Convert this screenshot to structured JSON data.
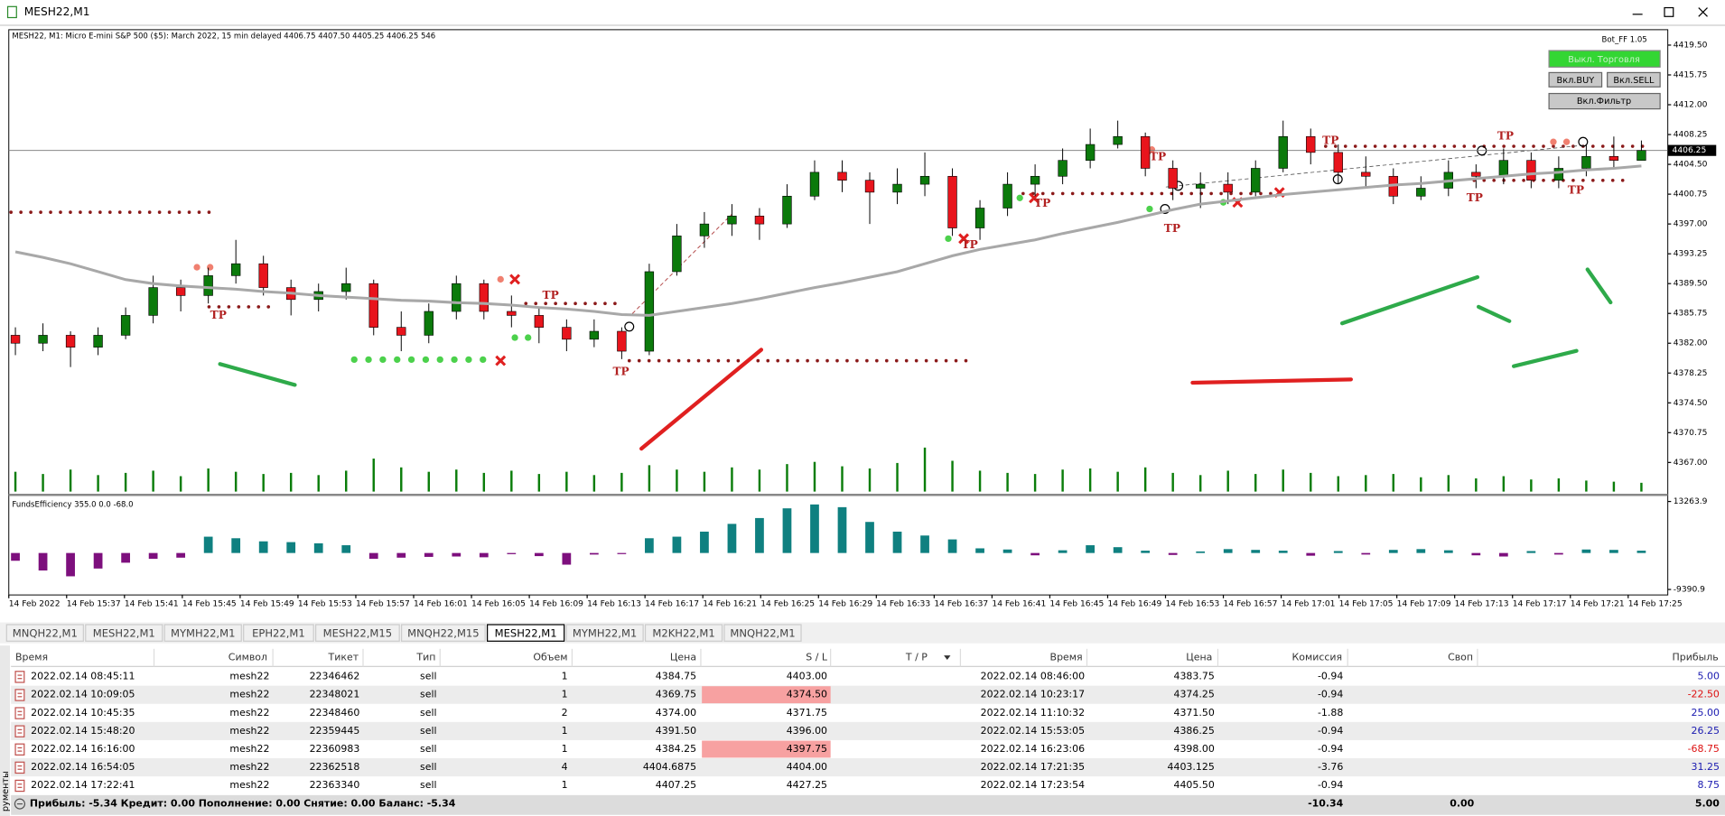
{
  "window": {
    "title": "MESH22,M1"
  },
  "chart_data": {
    "type": "candlestick",
    "header": "MESH22, M1:  Micro E-mini S&P 500 ($5): March 2022, 15 min delayed  4406.75 4407.50 4405.25 4406.25  546",
    "bot_label": "Bot_FF 1.05",
    "buttons": [
      "Выкл. Торговля",
      "Вкл.BUY",
      "Вкл.SELL",
      "Вкл.Фильтр"
    ],
    "ylim": [
      4363.2,
      4421.3
    ],
    "yticks": [
      {
        "value": 4419.5,
        "label": "4419.50"
      },
      {
        "value": 4415.75,
        "label": "4415.75"
      },
      {
        "value": 4412,
        "label": "4412.00"
      },
      {
        "value": 4408.25,
        "label": "4408.25"
      },
      {
        "value": 4404.5,
        "label": "4404.50"
      },
      {
        "value": 4400.75,
        "label": "4400.75"
      },
      {
        "value": 4397,
        "label": "4397.00"
      },
      {
        "value": 4393.25,
        "label": "4393.25"
      },
      {
        "value": 4389.5,
        "label": "4389.50"
      },
      {
        "value": 4385.75,
        "label": "4385.75"
      },
      {
        "value": 4382,
        "label": "4382.00"
      },
      {
        "value": 4378.25,
        "label": "4378.25"
      },
      {
        "value": 4374.5,
        "label": "4374.50"
      },
      {
        "value": 4370.75,
        "label": "4370.75"
      },
      {
        "value": 4367,
        "label": "4367.00"
      }
    ],
    "current_price": {
      "value": 4406.25,
      "label": "4406.25"
    },
    "bull_color": "#0b7a0b",
    "bear_color": "#e8141c",
    "open": [
      4383,
      4382,
      4383,
      4381.5,
      4383,
      4385.5,
      4389,
      4388,
      4390.5,
      4392,
      4389,
      4387.5,
      4388.5,
      4389.5,
      4384,
      4383,
      4386,
      4389.5,
      4386,
      4385.5,
      4384,
      4382.5,
      4383.5,
      4381,
      4391,
      4395.5,
      4397,
      4398,
      4397,
      4400.5,
      4403.5,
      4402.5,
      4401,
      4402,
      4403,
      4396.5,
      4399,
      4402,
      4403,
      4405,
      4407,
      4408,
      4404,
      4401.5,
      4402,
      4401,
      4404,
      4408,
      4406,
      4403.5,
      4403,
      4400.5,
      4401.5,
      4403.5,
      4403,
      4405,
      4402.5,
      4404,
      4405.5,
      4405
    ],
    "high": [
      4384,
      4384.5,
      4383.5,
      4384,
      4386.5,
      4390.5,
      4390,
      4391.5,
      4395,
      4393,
      4390,
      4389.5,
      4391.5,
      4390,
      4386,
      4387,
      4390.5,
      4390,
      4388,
      4386.5,
      4385,
      4385,
      4384,
      4392,
      4397,
      4398.5,
      4399.5,
      4399,
      4402,
      4405,
      4405,
      4403.5,
      4404,
      4406,
      4404,
      4400,
      4403.5,
      4404.5,
      4406.5,
      4409,
      4410,
      4408.5,
      4405,
      4403.5,
      4403.5,
      4405,
      4410,
      4409,
      4407,
      4405.5,
      4404,
      4403,
      4405,
      4404.5,
      4406.5,
      4406,
      4405.5,
      4407,
      4408,
      4407.5
    ],
    "low": [
      4380.5,
      4381,
      4379,
      4380.5,
      4382.5,
      4384.5,
      4386,
      4387,
      4389.5,
      4388,
      4385.5,
      4386,
      4387.5,
      4383,
      4381,
      4382,
      4385,
      4385,
      4384,
      4382,
      4381,
      4381.5,
      4380,
      4380.5,
      4390.5,
      4394,
      4395.5,
      4395,
      4396.5,
      4400,
      4401,
      4397,
      4399.5,
      4400.5,
      4395.5,
      4395,
      4398,
      4400.5,
      4402,
      4404,
      4406.5,
      4403,
      4400,
      4399,
      4399.5,
      4400.5,
      4403.5,
      4404.5,
      4402,
      4401.5,
      4399.5,
      4400,
      4400.5,
      4401.5,
      4402,
      4401.5,
      4401.5,
      4403,
      4404,
      4405
    ],
    "close": [
      4382,
      4383,
      4381.5,
      4383,
      4385.5,
      4389,
      4388,
      4390.5,
      4392,
      4389,
      4387.5,
      4388.5,
      4389.5,
      4384,
      4383,
      4386,
      4389.5,
      4386,
      4385.5,
      4384,
      4382.5,
      4383.5,
      4381,
      4391,
      4395.5,
      4397,
      4398,
      4397,
      4400.5,
      4403.5,
      4402.5,
      4401,
      4402,
      4403,
      4396.5,
      4399,
      4402,
      4403,
      4405,
      4407,
      4408,
      4404,
      4401.5,
      4402,
      4401,
      4404,
      4408,
      4406,
      4403.5,
      4403,
      4400.5,
      4401.5,
      4403.5,
      4403,
      4405,
      4402.5,
      4404,
      4405.5,
      4405,
      4406.25
    ],
    "volume": [
      18,
      16,
      20,
      15,
      17,
      19,
      14,
      21,
      18,
      16,
      17,
      15,
      19,
      30,
      22,
      18,
      20,
      17,
      19,
      16,
      18,
      15,
      17,
      24,
      20,
      18,
      22,
      20,
      25,
      27,
      23,
      21,
      26,
      40,
      28,
      19,
      17,
      16,
      20,
      21,
      18,
      22,
      17,
      15,
      19,
      16,
      20,
      17,
      14,
      15,
      16,
      13,
      15,
      12,
      14,
      11,
      12,
      10,
      9,
      8
    ],
    "moving_average": {
      "color": "#a8a8a8",
      "values": [
        4393.5,
        4392.8,
        4392,
        4391,
        4390,
        4389.5,
        4389.2,
        4389,
        4388.8,
        4388.5,
        4388.3,
        4388,
        4387.8,
        4387.6,
        4387.4,
        4387.3,
        4387.1,
        4387,
        4386.8,
        4386.5,
        4386.3,
        4386,
        4385.6,
        4385.5,
        4386,
        4386.5,
        4387,
        4387.6,
        4388.3,
        4389,
        4389.6,
        4390.3,
        4391,
        4392,
        4393,
        4393.8,
        4394.4,
        4395,
        4395.8,
        4396.5,
        4397.2,
        4398,
        4398.8,
        4399.5,
        4399.9,
        4400.3,
        4400.7,
        4401,
        4401.3,
        4401.6,
        4401.9,
        4402.1,
        4402.4,
        4402.7,
        4403,
        4403.3,
        4403.5,
        4403.8,
        4404,
        4404.3
      ]
    },
    "x_labels": [
      "14 Feb 2022",
      "14 Feb 15:37",
      "14 Feb 15:41",
      "14 Feb 15:45",
      "14 Feb 15:49",
      "14 Feb 15:53",
      "14 Feb 15:57",
      "14 Feb 16:01",
      "14 Feb 16:05",
      "14 Feb 16:09",
      "14 Feb 16:13",
      "14 Feb 16:17",
      "14 Feb 16:21",
      "14 Feb 16:25",
      "14 Feb 16:29",
      "14 Feb 16:33",
      "14 Feb 16:37",
      "14 Feb 16:41",
      "14 Feb 16:45",
      "14 Feb 16:49",
      "14 Feb 16:53",
      "14 Feb 16:57",
      "14 Feb 17:01",
      "14 Feb 17:05",
      "14 Feb 17:09",
      "14 Feb 17:13",
      "14 Feb 17:17",
      "14 Feb 17:21",
      "14 Feb 17:25"
    ],
    "tp_marker": "TP",
    "indicator": {
      "type": "bar",
      "label": "FundsEfficiency 355.0 0.0 -68.0",
      "ylim": [
        -10520,
        14400
      ],
      "yticks": [
        13263.9,
        -9390.9
      ],
      "positive_color": "#0f8080",
      "negative_color": "#7d0f7d",
      "values": [
        -2000,
        -4500,
        -6000,
        -4000,
        -2500,
        -1500,
        -1200,
        4200,
        3800,
        3000,
        2800,
        2500,
        2000,
        -1500,
        -1200,
        -1000,
        -900,
        -1100,
        -300,
        -800,
        -3000,
        -400,
        -200,
        3800,
        4200,
        5500,
        7500,
        9000,
        11500,
        12500,
        11800,
        8000,
        5500,
        4500,
        3500,
        1200,
        900,
        -600,
        700,
        2000,
        1500,
        600,
        -500,
        400,
        1000,
        800,
        600,
        -700,
        500,
        -400,
        800,
        1000,
        700,
        -600,
        -900,
        500,
        -400,
        900,
        800,
        600
      ]
    }
  },
  "tabs": [
    "MNQH22,M1",
    "MESH22,M1",
    "MYMH22,M1",
    "EPH22,M1",
    "MESH22,M15",
    "MNQH22,M15",
    "MESH22,M1",
    "MYMH22,M1",
    "M2KH22,M1",
    "MNQH22,M1"
  ],
  "active_tab": 6,
  "table": {
    "headers": [
      "Время",
      "Символ",
      "Тикет",
      "Тип",
      "Объем",
      "Цена",
      "S / L",
      "T / P",
      "Время",
      "Цена",
      "Комиссия",
      "Своп",
      "Прибыль"
    ],
    "rows": [
      {
        "open_time": "2022.02.14 08:45:11",
        "symbol": "mesh22",
        "ticket": "22346462",
        "type": "sell",
        "volume": "1",
        "price": "4384.75",
        "sl": "4403.00",
        "close_time": "2022.02.14 08:46:00",
        "close_price": "4383.75",
        "commission": "-0.94",
        "profit": "5.00"
      },
      {
        "open_time": "2022.02.14 10:09:05",
        "symbol": "mesh22",
        "ticket": "22348021",
        "type": "sell",
        "volume": "1",
        "price": "4369.75",
        "sl": "4374.50",
        "sl_hit": true,
        "close_time": "2022.02.14 10:23:17",
        "close_price": "4374.25",
        "commission": "-0.94",
        "profit": "-22.50"
      },
      {
        "open_time": "2022.02.14 10:45:35",
        "symbol": "mesh22",
        "ticket": "22348460",
        "type": "sell",
        "volume": "2",
        "price": "4374.00",
        "sl": "4371.75",
        "close_time": "2022.02.14 11:10:32",
        "close_price": "4371.50",
        "commission": "-1.88",
        "profit": "25.00"
      },
      {
        "open_time": "2022.02.14 15:48:20",
        "symbol": "mesh22",
        "ticket": "22359445",
        "type": "sell",
        "volume": "1",
        "price": "4391.50",
        "sl": "4396.00",
        "close_time": "2022.02.14 15:53:05",
        "close_price": "4386.25",
        "commission": "-0.94",
        "profit": "26.25"
      },
      {
        "open_time": "2022.02.14 16:16:00",
        "symbol": "mesh22",
        "ticket": "22360983",
        "type": "sell",
        "volume": "1",
        "price": "4384.25",
        "sl": "4397.75",
        "sl_hit": true,
        "close_time": "2022.02.14 16:23:06",
        "close_price": "4398.00",
        "commission": "-0.94",
        "profit": "-68.75"
      },
      {
        "open_time": "2022.02.14 16:54:05",
        "symbol": "mesh22",
        "ticket": "22362518",
        "type": "sell",
        "volume": "4",
        "price": "4404.6875",
        "sl": "4404.00",
        "close_time": "2022.02.14 17:21:35",
        "close_price": "4403.125",
        "commission": "-3.76",
        "profit": "31.25"
      },
      {
        "open_time": "2022.02.14 17:22:41",
        "symbol": "mesh22",
        "ticket": "22363340",
        "type": "sell",
        "volume": "1",
        "price": "4407.25",
        "sl": "4427.25",
        "close_time": "2022.02.14 17:23:54",
        "close_price": "4405.50",
        "commission": "-0.94",
        "profit": "8.75"
      }
    ],
    "footer": {
      "summary": "Прибыль: -5.34  Кредит: 0.00  Пополнение: 0.00  Снятие: 0.00  Баланс: -5.34",
      "commission": "-10.34",
      "swap": "0.00",
      "profit": "5.00"
    }
  },
  "sidebar": "рументы"
}
